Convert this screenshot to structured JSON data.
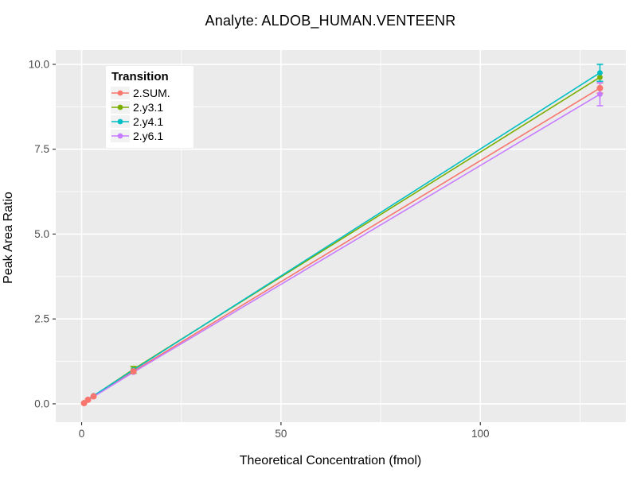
{
  "chart_data": {
    "type": "line",
    "title": "Analyte: ALDOB_HUMAN.VENTEENR",
    "xlabel": "Theoretical Concentration (fmol)",
    "ylabel": "Peak Area Ratio",
    "legend_title": "Transition",
    "legend_position": "top-left-inside",
    "panel_bg": "#EBEBEB",
    "grid_color": "#FFFFFF",
    "tick_color": "#333333",
    "tick_label_color": "#4D4D4D",
    "axis_title_color": "#000000",
    "xlim": [
      -6.5,
      136.5
    ],
    "ylim": [
      -0.54,
      10.42
    ],
    "x_ticks": [
      0,
      50,
      100
    ],
    "x_tick_labels": [
      "0",
      "50",
      "100"
    ],
    "x_minor_ticks": [
      25,
      75,
      125
    ],
    "y_ticks": [
      0,
      2.5,
      5,
      7.5,
      10
    ],
    "y_tick_labels": [
      "0.0",
      "2.5",
      "5.0",
      "7.5",
      "10.0"
    ],
    "y_minor_ticks": [
      1.25,
      3.75,
      6.25,
      8.75
    ],
    "x": [
      0.6,
      1.6,
      3,
      13,
      130
    ],
    "series": [
      {
        "name": "2.SUM.",
        "color": "#F8766D",
        "values": [
          0.02,
          0.12,
          0.22,
          0.96,
          9.3
        ],
        "error_low": [
          null,
          null,
          null,
          null,
          9.15
        ],
        "error_high": [
          null,
          null,
          null,
          null,
          9.45
        ]
      },
      {
        "name": "2.y3.1",
        "color": "#7CAE00",
        "values": [
          0.03,
          0.12,
          0.23,
          1.02,
          9.62
        ],
        "error_low": [
          null,
          null,
          null,
          0.9,
          null
        ],
        "error_high": [
          null,
          null,
          null,
          1.1,
          null
        ]
      },
      {
        "name": "2.y4.1",
        "color": "#00BFC4",
        "values": [
          0.03,
          0.13,
          0.24,
          1.0,
          9.75
        ],
        "error_low": [
          null,
          null,
          null,
          null,
          9.5
        ],
        "error_high": [
          null,
          null,
          null,
          null,
          10.0
        ]
      },
      {
        "name": "2.y6.1",
        "color": "#C77CFF",
        "values": [
          0.02,
          0.11,
          0.21,
          0.93,
          9.12
        ],
        "error_low": [
          null,
          null,
          null,
          null,
          8.78
        ],
        "error_high": [
          null,
          null,
          null,
          null,
          9.46
        ]
      }
    ]
  }
}
